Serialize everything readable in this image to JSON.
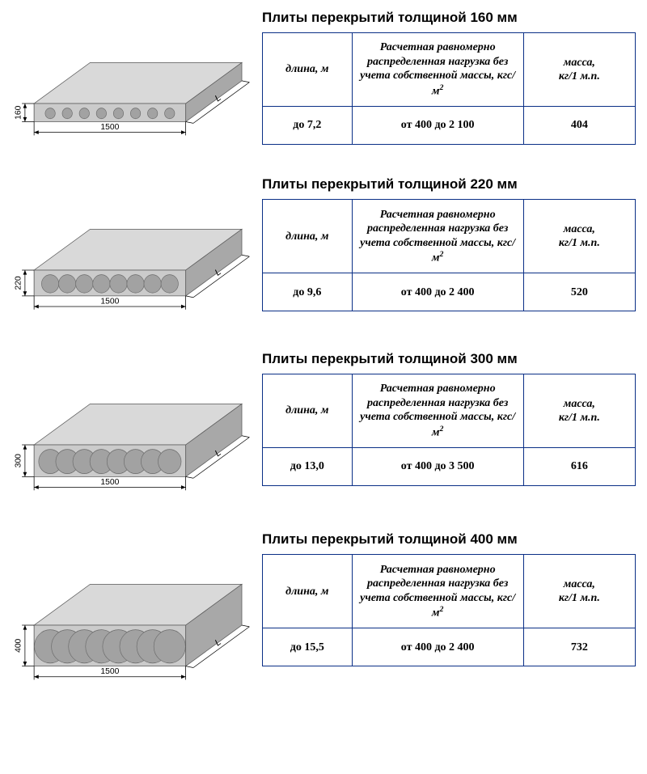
{
  "table_headers": {
    "col1": "длина, м",
    "col2_html": "Расчетная равномерно распределенная нагрузка без учета собственной массы, кгс/м<sup>2</sup>",
    "col3_html": "масса,<br>кг/1 м.п."
  },
  "colors": {
    "border": "#0a2f86",
    "slab_face": "#cbcbcb",
    "slab_top": "#d9d9d9",
    "slab_side": "#a8a8a8",
    "hole": "#a2a2a2",
    "dim_line": "#000000",
    "background": "#ffffff"
  },
  "diagram_common": {
    "width_label": "1500",
    "length_label": "L",
    "holes": 8
  },
  "sections": [
    {
      "title": "Плиты перекрытий толщиной 160 мм",
      "height_label": "160",
      "slab_h": 24,
      "values": {
        "length": "до 7,2",
        "load": "от 400 до 2 100",
        "mass": "404"
      }
    },
    {
      "title": "Плиты перекрытий толщиной 220 мм",
      "height_label": "220",
      "slab_h": 34,
      "values": {
        "length": "до 9,6",
        "load": "от 400 до 2 400",
        "mass": "520"
      }
    },
    {
      "title": "Плиты перекрытий толщиной 300 мм",
      "height_label": "300",
      "slab_h": 42,
      "values": {
        "length": "до 13,0",
        "load": "от 400 до 3 500",
        "mass": "616"
      }
    },
    {
      "title": "Плиты перекрытий толщиной 400 мм",
      "height_label": "400",
      "slab_h": 54,
      "values": {
        "length": "до 15,5",
        "load": "от 400 до 2 400",
        "mass": "732"
      }
    }
  ]
}
